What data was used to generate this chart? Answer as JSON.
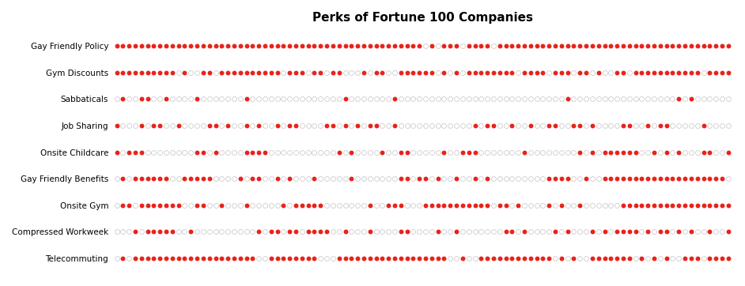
{
  "title": "Perks of Fortune 100 Companies",
  "categories": [
    "Gay Friendly Policy",
    "Gym Discounts",
    "Sabbaticals",
    "Job Sharing",
    "Onsite Childcare",
    "Gay Friendly Benefits",
    "Onsite Gym",
    "Compressed Workweek",
    "Telecommuting"
  ],
  "n_companies": 100,
  "filled_color": "#e8231a",
  "empty_facecolor": "#ffffff",
  "empty_edge_color": "#cccccc",
  "background_color": "#ffffff",
  "title_fontsize": 11,
  "figsize": [
    9.42,
    3.62
  ],
  "dpi": 100,
  "patterns": [
    [
      1,
      1,
      1,
      1,
      1,
      1,
      1,
      1,
      1,
      1,
      1,
      1,
      1,
      1,
      1,
      1,
      1,
      1,
      1,
      1,
      1,
      1,
      1,
      1,
      1,
      1,
      1,
      1,
      1,
      1,
      1,
      1,
      1,
      1,
      1,
      1,
      1,
      1,
      1,
      1,
      1,
      1,
      1,
      1,
      1,
      1,
      1,
      1,
      1,
      1,
      0,
      1,
      0,
      1,
      1,
      1,
      0,
      1,
      1,
      1,
      1,
      0,
      1,
      1,
      1,
      1,
      1,
      1,
      1,
      1,
      1,
      1,
      1,
      1,
      1,
      1,
      1,
      1,
      1,
      1,
      1,
      1,
      1,
      1,
      1,
      1,
      1,
      1,
      1,
      1,
      1,
      1,
      1,
      1,
      1,
      1,
      1,
      1,
      1,
      1
    ],
    [
      1,
      1,
      1,
      1,
      1,
      1,
      1,
      1,
      1,
      1,
      0,
      1,
      0,
      0,
      1,
      1,
      0,
      1,
      1,
      1,
      1,
      1,
      1,
      1,
      1,
      1,
      1,
      0,
      1,
      1,
      1,
      0,
      1,
      1,
      0,
      1,
      1,
      0,
      0,
      0,
      1,
      0,
      1,
      1,
      0,
      0,
      1,
      1,
      1,
      1,
      1,
      1,
      0,
      1,
      0,
      1,
      0,
      1,
      1,
      1,
      1,
      1,
      1,
      1,
      1,
      0,
      1,
      1,
      1,
      1,
      0,
      1,
      1,
      1,
      0,
      1,
      1,
      0,
      1,
      0,
      0,
      1,
      1,
      0,
      1,
      1,
      1,
      1,
      1,
      1,
      1,
      1,
      1,
      1,
      1,
      0,
      1,
      1,
      1,
      1
    ],
    [
      0,
      1,
      0,
      0,
      1,
      1,
      0,
      0,
      1,
      0,
      0,
      0,
      0,
      1,
      0,
      0,
      0,
      0,
      0,
      0,
      0,
      1,
      0,
      0,
      0,
      0,
      0,
      0,
      0,
      0,
      0,
      0,
      0,
      0,
      0,
      0,
      0,
      1,
      0,
      0,
      0,
      0,
      0,
      0,
      0,
      1,
      0,
      0,
      0,
      0,
      0,
      0,
      0,
      0,
      0,
      0,
      0,
      0,
      0,
      0,
      0,
      0,
      0,
      0,
      0,
      0,
      0,
      0,
      0,
      0,
      0,
      0,
      0,
      1,
      0,
      0,
      0,
      0,
      0,
      0,
      0,
      0,
      0,
      0,
      0,
      0,
      0,
      0,
      0,
      0,
      0,
      1,
      0,
      1,
      0,
      0,
      0,
      0,
      0,
      0
    ],
    [
      1,
      0,
      0,
      0,
      1,
      0,
      1,
      1,
      0,
      0,
      1,
      0,
      0,
      0,
      0,
      1,
      1,
      0,
      1,
      0,
      0,
      1,
      0,
      1,
      0,
      0,
      1,
      0,
      1,
      1,
      0,
      0,
      0,
      0,
      1,
      1,
      0,
      1,
      0,
      1,
      0,
      1,
      1,
      0,
      0,
      1,
      0,
      0,
      0,
      0,
      0,
      0,
      0,
      0,
      0,
      0,
      0,
      0,
      1,
      0,
      1,
      1,
      0,
      0,
      1,
      0,
      0,
      1,
      0,
      0,
      1,
      1,
      0,
      0,
      1,
      1,
      0,
      1,
      0,
      0,
      0,
      0,
      1,
      1,
      0,
      0,
      1,
      0,
      1,
      1,
      0,
      0,
      0,
      0,
      0,
      1,
      0,
      0,
      0,
      0
    ],
    [
      1,
      0,
      1,
      1,
      1,
      0,
      0,
      0,
      0,
      0,
      0,
      0,
      0,
      1,
      1,
      0,
      1,
      0,
      0,
      0,
      0,
      1,
      1,
      1,
      1,
      0,
      0,
      0,
      0,
      0,
      0,
      0,
      0,
      0,
      0,
      0,
      1,
      0,
      1,
      0,
      0,
      0,
      0,
      1,
      0,
      0,
      1,
      1,
      0,
      0,
      0,
      0,
      0,
      1,
      0,
      0,
      1,
      1,
      1,
      0,
      0,
      0,
      0,
      0,
      0,
      0,
      1,
      0,
      0,
      0,
      0,
      0,
      0,
      0,
      0,
      1,
      0,
      1,
      0,
      1,
      1,
      1,
      1,
      1,
      1,
      0,
      0,
      1,
      0,
      1,
      0,
      1,
      0,
      0,
      0,
      1,
      1,
      0,
      0,
      1
    ],
    [
      0,
      1,
      0,
      1,
      1,
      1,
      1,
      1,
      1,
      0,
      0,
      1,
      1,
      1,
      1,
      1,
      0,
      0,
      0,
      0,
      1,
      0,
      1,
      1,
      0,
      0,
      1,
      0,
      1,
      0,
      0,
      0,
      1,
      0,
      0,
      0,
      0,
      0,
      1,
      0,
      0,
      0,
      0,
      0,
      0,
      0,
      1,
      1,
      0,
      1,
      1,
      0,
      1,
      0,
      0,
      1,
      0,
      0,
      1,
      0,
      1,
      0,
      0,
      0,
      0,
      0,
      0,
      0,
      0,
      0,
      1,
      1,
      1,
      1,
      0,
      0,
      1,
      0,
      0,
      1,
      1,
      1,
      1,
      1,
      1,
      1,
      1,
      1,
      1,
      1,
      1,
      1,
      1,
      1,
      1,
      1,
      1,
      1,
      1,
      0
    ],
    [
      0,
      1,
      1,
      0,
      1,
      1,
      1,
      1,
      1,
      1,
      1,
      0,
      0,
      1,
      1,
      0,
      0,
      1,
      0,
      0,
      0,
      1,
      0,
      0,
      0,
      0,
      0,
      1,
      0,
      1,
      1,
      1,
      1,
      1,
      0,
      0,
      0,
      0,
      0,
      0,
      0,
      1,
      0,
      0,
      1,
      1,
      1,
      0,
      0,
      0,
      1,
      1,
      1,
      1,
      1,
      1,
      1,
      1,
      1,
      1,
      1,
      0,
      1,
      1,
      0,
      1,
      0,
      0,
      0,
      0,
      1,
      0,
      1,
      0,
      0,
      1,
      0,
      0,
      0,
      0,
      0,
      0,
      1,
      1,
      1,
      1,
      1,
      1,
      1,
      1,
      1,
      1,
      1,
      1,
      1,
      1,
      1,
      1,
      1,
      1
    ],
    [
      0,
      0,
      0,
      1,
      0,
      1,
      1,
      1,
      1,
      1,
      0,
      0,
      1,
      0,
      0,
      0,
      0,
      0,
      0,
      0,
      0,
      0,
      0,
      1,
      0,
      1,
      1,
      0,
      1,
      1,
      0,
      1,
      1,
      1,
      1,
      0,
      0,
      1,
      0,
      0,
      0,
      1,
      0,
      0,
      0,
      0,
      1,
      1,
      0,
      0,
      0,
      0,
      1,
      0,
      0,
      1,
      0,
      0,
      0,
      0,
      0,
      0,
      0,
      1,
      1,
      0,
      1,
      0,
      0,
      0,
      0,
      1,
      0,
      1,
      0,
      0,
      0,
      1,
      0,
      1,
      0,
      1,
      1,
      1,
      1,
      0,
      1,
      0,
      1,
      1,
      0,
      1,
      0,
      1,
      0,
      0,
      1,
      0,
      0,
      1
    ],
    [
      0,
      1,
      0,
      1,
      1,
      1,
      1,
      1,
      1,
      1,
      1,
      1,
      1,
      1,
      1,
      1,
      1,
      1,
      1,
      1,
      1,
      1,
      1,
      0,
      0,
      1,
      1,
      1,
      1,
      1,
      1,
      1,
      1,
      0,
      0,
      0,
      1,
      1,
      1,
      1,
      1,
      1,
      1,
      1,
      1,
      1,
      1,
      1,
      1,
      1,
      1,
      1,
      1,
      1,
      0,
      0,
      1,
      0,
      0,
      1,
      1,
      1,
      1,
      1,
      1,
      1,
      1,
      1,
      1,
      1,
      1,
      0,
      1,
      0,
      1,
      0,
      0,
      1,
      1,
      1,
      1,
      1,
      1,
      1,
      0,
      1,
      0,
      1,
      0,
      1,
      0,
      0,
      1,
      1,
      1,
      0,
      1,
      1,
      1,
      1
    ]
  ]
}
